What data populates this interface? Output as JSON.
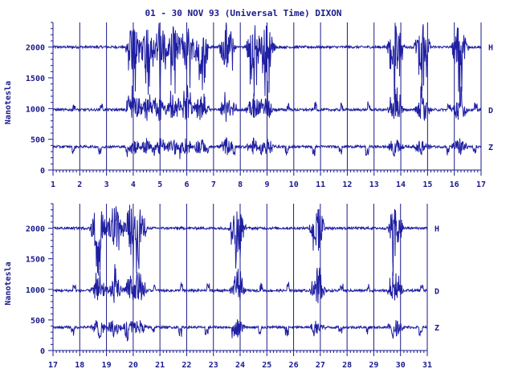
{
  "title": "01 - 30 NOV 93 (Universal Time) DIXON",
  "colors": {
    "ink": "#1a1a8c",
    "trace": "#1f1fa3",
    "background": "#ffffff"
  },
  "chart_data": [
    {
      "type": "line",
      "ylabel": "Nanotesla",
      "ylim": [
        0,
        2400
      ],
      "yticks": [
        "0",
        "500",
        "1000",
        "1500",
        "2000"
      ],
      "xlim": [
        1,
        17
      ],
      "xticks": [
        "1",
        "2",
        "3",
        "4",
        "5",
        "6",
        "7",
        "8",
        "9",
        "10",
        "11",
        "12",
        "13",
        "14",
        "15",
        "16",
        "17"
      ],
      "grid": true,
      "series": [
        {
          "name": "H",
          "baseline": 2000
        },
        {
          "name": "D",
          "baseline": 980
        },
        {
          "name": "Z",
          "baseline": 380
        }
      ],
      "disturbed_days": [
        4,
        4.5,
        5,
        5.5,
        6,
        6.5,
        7.5,
        8.5,
        9,
        13.8,
        14.8,
        16.2
      ]
    },
    {
      "type": "line",
      "ylabel": "Nanotesla",
      "ylim": [
        0,
        2400
      ],
      "yticks": [
        "0",
        "500",
        "1000",
        "1500",
        "2000"
      ],
      "xlim": [
        17,
        31
      ],
      "xticks": [
        "17",
        "18",
        "19",
        "20",
        "21",
        "22",
        "23",
        "24",
        "25",
        "26",
        "27",
        "28",
        "29",
        "30",
        "31"
      ],
      "grid": true,
      "series": [
        {
          "name": "H",
          "baseline": 2000
        },
        {
          "name": "D",
          "baseline": 980
        },
        {
          "name": "Z",
          "baseline": 380
        }
      ],
      "disturbed_days": [
        18.7,
        19.3,
        19.9,
        20.2,
        23.9,
        26.9,
        29.8
      ]
    }
  ]
}
